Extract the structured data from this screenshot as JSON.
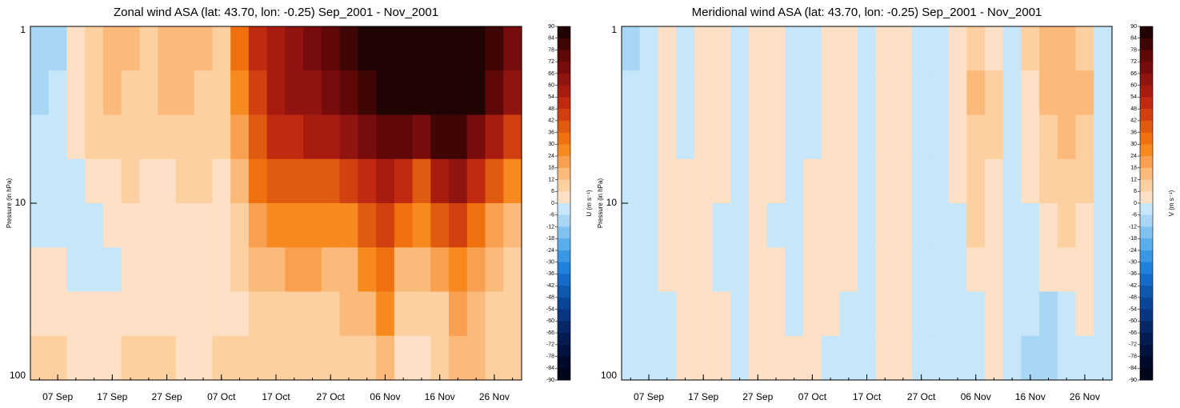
{
  "chart_data": [
    {
      "type": "contour",
      "title": "Zonal wind ASA (lat: 43.70, lon: -0.25) Sep_2001 - Nov_2001",
      "ylabel": "Pressure (in hPa)",
      "colorbar_label": "U (m s⁻¹)",
      "ylog": true,
      "ylim": [
        100,
        1
      ],
      "yticks": [
        1,
        10,
        100
      ],
      "categories": [
        null,
        "07 Sep",
        null,
        null,
        "17 Sep",
        null,
        null,
        "27 Sep",
        null,
        null,
        "07 Oct",
        null,
        null,
        "17 Oct",
        null,
        null,
        "27 Oct",
        null,
        null,
        "06 Nov",
        null,
        null,
        "16 Nov",
        null,
        null,
        "26 Nov",
        null
      ],
      "levels": [
        90,
        84,
        78,
        72,
        66,
        60,
        54,
        48,
        42,
        36,
        30,
        24,
        18,
        12,
        6,
        0,
        -6,
        -12,
        -18,
        -24,
        -30,
        -36,
        -42,
        -48,
        -54,
        -60,
        -66,
        -72,
        -78,
        -84,
        -90
      ],
      "colors": [
        "#01051a",
        "#020a2c",
        "#03123e",
        "#041c52",
        "#062868",
        "#083680",
        "#0a4698",
        "#0e58b0",
        "#156cc8",
        "#1e82dc",
        "#3898e6",
        "#5aaeec",
        "#7fc2f0",
        "#a8d6f5",
        "#c6e6fa",
        "#fde0c5",
        "#fcd0a0",
        "#fbb97a",
        "#f9a050",
        "#f78a1e",
        "#f07010",
        "#e05a10",
        "#d04010",
        "#c02a10",
        "#a81c10",
        "#901410",
        "#780c0c",
        "#600808",
        "#400606",
        "#200404"
      ],
      "values": [
        [
          -10,
          -8,
          4,
          10,
          14,
          12,
          10,
          14,
          16,
          12,
          10,
          30,
          50,
          58,
          62,
          68,
          72,
          78,
          84,
          88,
          90,
          90,
          90,
          90,
          88,
          80,
          70
        ],
        [
          -8,
          -6,
          2,
          8,
          12,
          10,
          8,
          12,
          14,
          10,
          8,
          26,
          46,
          56,
          60,
          64,
          68,
          72,
          80,
          86,
          88,
          88,
          90,
          88,
          84,
          74,
          62
        ],
        [
          -6,
          -4,
          2,
          6,
          8,
          8,
          6,
          8,
          10,
          8,
          6,
          20,
          38,
          48,
          52,
          54,
          56,
          60,
          70,
          76,
          72,
          70,
          80,
          78,
          70,
          58,
          44
        ],
        [
          -6,
          -4,
          -2,
          2,
          4,
          6,
          4,
          4,
          6,
          6,
          4,
          14,
          30,
          38,
          40,
          40,
          40,
          42,
          52,
          58,
          50,
          40,
          54,
          60,
          50,
          36,
          28
        ],
        [
          -6,
          -4,
          -4,
          -2,
          2,
          4,
          4,
          4,
          4,
          4,
          4,
          8,
          20,
          26,
          28,
          28,
          26,
          28,
          38,
          44,
          30,
          24,
          36,
          42,
          32,
          20,
          14
        ],
        [
          2,
          2,
          -2,
          -2,
          -2,
          2,
          4,
          4,
          4,
          4,
          4,
          6,
          12,
          16,
          18,
          18,
          16,
          16,
          26,
          32,
          16,
          12,
          18,
          28,
          20,
          12,
          8
        ],
        [
          4,
          4,
          2,
          2,
          4,
          4,
          4,
          4,
          4,
          4,
          4,
          4,
          8,
          10,
          10,
          10,
          10,
          12,
          16,
          24,
          8,
          6,
          10,
          22,
          16,
          8,
          6
        ],
        [
          6,
          6,
          4,
          4,
          4,
          6,
          6,
          6,
          4,
          4,
          6,
          6,
          8,
          8,
          8,
          8,
          8,
          8,
          10,
          16,
          4,
          2,
          8,
          16,
          12,
          6,
          6
        ]
      ]
    },
    {
      "type": "contour",
      "title": "Meridional wind ASA (lat: 43.70, lon: -0.25) Sep_2001 - Nov_2001",
      "ylabel": "Pressure (in hPa)",
      "colorbar_label": "V (m s⁻¹)",
      "ylog": true,
      "ylim": [
        100,
        1
      ],
      "yticks": [
        1,
        10,
        100
      ],
      "categories": [
        null,
        "07 Sep",
        null,
        null,
        "17 Sep",
        null,
        null,
        "27 Sep",
        null,
        null,
        "07 Oct",
        null,
        null,
        "17 Oct",
        null,
        null,
        "27 Oct",
        null,
        null,
        "06 Nov",
        null,
        null,
        "16 Nov",
        null,
        null,
        "26 Nov",
        null
      ],
      "levels": [
        90,
        84,
        78,
        72,
        66,
        60,
        54,
        48,
        42,
        36,
        30,
        24,
        18,
        12,
        6,
        0,
        -6,
        -12,
        -18,
        -24,
        -30,
        -36,
        -42,
        -48,
        -54,
        -60,
        -66,
        -72,
        -78,
        -84,
        -90
      ],
      "colors": [
        "#01051a",
        "#020a2c",
        "#03123e",
        "#041c52",
        "#062868",
        "#083680",
        "#0a4698",
        "#0e58b0",
        "#156cc8",
        "#1e82dc",
        "#3898e6",
        "#5aaeec",
        "#7fc2f0",
        "#a8d6f5",
        "#c6e6fa",
        "#fde0c5",
        "#fcd0a0",
        "#fbb97a",
        "#f9a050",
        "#f78a1e",
        "#f07010",
        "#e05a10",
        "#d04010",
        "#c02a10",
        "#a81c10",
        "#901410",
        "#780c0c",
        "#600808",
        "#400606",
        "#200404"
      ],
      "values": [
        [
          -8,
          -6,
          4,
          -4,
          2,
          4,
          -4,
          2,
          4,
          -4,
          -6,
          2,
          4,
          -4,
          2,
          4,
          -4,
          -2,
          2,
          10,
          4,
          -4,
          6,
          14,
          16,
          10,
          -4
        ],
        [
          -6,
          -4,
          4,
          -2,
          4,
          2,
          -4,
          4,
          4,
          -2,
          -4,
          4,
          2,
          -4,
          4,
          2,
          -2,
          -4,
          4,
          12,
          6,
          -4,
          4,
          12,
          16,
          12,
          -2
        ],
        [
          -4,
          -2,
          2,
          -2,
          4,
          2,
          -2,
          4,
          2,
          -2,
          -2,
          4,
          2,
          -4,
          4,
          2,
          -2,
          -4,
          2,
          10,
          6,
          -2,
          2,
          8,
          14,
          10,
          -2
        ],
        [
          -4,
          -2,
          2,
          2,
          4,
          2,
          -2,
          2,
          2,
          -2,
          2,
          4,
          2,
          -4,
          4,
          2,
          -2,
          -4,
          2,
          8,
          4,
          -4,
          2,
          6,
          10,
          6,
          -2
        ],
        [
          -4,
          -2,
          2,
          2,
          4,
          -2,
          -4,
          2,
          -2,
          -4,
          2,
          4,
          2,
          -4,
          2,
          2,
          -2,
          -4,
          -2,
          6,
          2,
          -6,
          -2,
          4,
          6,
          4,
          -2
        ],
        [
          -4,
          -2,
          2,
          2,
          2,
          -2,
          -2,
          2,
          2,
          -2,
          2,
          2,
          2,
          -4,
          2,
          2,
          -2,
          -4,
          -2,
          2,
          2,
          -4,
          -2,
          2,
          4,
          2,
          -4
        ],
        [
          -4,
          -2,
          -2,
          2,
          2,
          2,
          -2,
          2,
          2,
          -2,
          2,
          2,
          -2,
          -2,
          2,
          2,
          -2,
          -4,
          -4,
          -2,
          2,
          -2,
          -4,
          -8,
          -2,
          2,
          -4
        ],
        [
          -4,
          -2,
          -4,
          2,
          2,
          2,
          -4,
          2,
          4,
          2,
          4,
          -2,
          -2,
          -2,
          2,
          4,
          -2,
          -4,
          -4,
          -2,
          4,
          -4,
          -8,
          -10,
          -4,
          -2,
          -4
        ]
      ]
    }
  ]
}
